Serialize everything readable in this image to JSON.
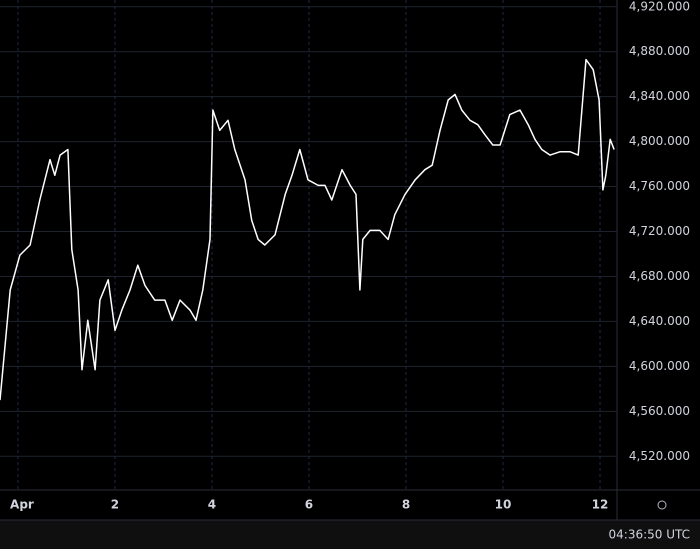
{
  "chart_data": {
    "type": "line",
    "x": [
      -0.37,
      -0.16,
      0.04,
      0.25,
      0.45,
      0.66,
      0.76,
      0.87,
      1.03,
      1.11,
      1.24,
      1.32,
      1.44,
      1.59,
      1.69,
      1.86,
      2.0,
      2.14,
      2.31,
      2.47,
      2.62,
      2.82,
      3.03,
      3.18,
      3.34,
      3.55,
      3.67,
      3.81,
      3.96,
      4.02,
      4.16,
      4.33,
      4.47,
      4.68,
      4.82,
      4.95,
      5.09,
      5.3,
      5.51,
      5.65,
      5.81,
      5.98,
      6.19,
      6.33,
      6.47,
      6.68,
      6.85,
      6.97,
      7.05,
      7.11,
      7.26,
      7.46,
      7.63,
      7.77,
      7.98,
      8.19,
      8.39,
      8.54,
      8.7,
      8.87,
      9.01,
      9.15,
      9.32,
      9.48,
      9.63,
      9.79,
      9.94,
      10.14,
      10.35,
      10.52,
      10.66,
      10.8,
      10.97,
      11.18,
      11.38,
      11.55,
      11.71,
      11.86,
      11.98,
      12.06,
      12.12,
      12.21,
      12.29
    ],
    "series": [
      {
        "color": "#ffffff",
        "values": [
          4570,
          4668,
          4699,
          4708,
          4748,
          4784,
          4770,
          4788,
          4793,
          4704,
          4668,
          4597,
          4641,
          4597,
          4659,
          4677,
          4632,
          4650,
          4668,
          4690,
          4672,
          4659,
          4659,
          4641,
          4659,
          4650,
          4641,
          4668,
          4713,
          4828,
          4810,
          4819,
          4793,
          4766,
          4730,
          4713,
          4708,
          4717,
          4753,
          4770,
          4793,
          4766,
          4761,
          4761,
          4748,
          4775,
          4761,
          4753,
          4668,
          4713,
          4721,
          4721,
          4713,
          4735,
          4753,
          4766,
          4775,
          4779,
          4810,
          4837,
          4842,
          4828,
          4819,
          4815,
          4806,
          4797,
          4797,
          4824,
          4828,
          4815,
          4802,
          4793,
          4788,
          4791,
          4791,
          4788,
          4873,
          4864,
          4837,
          4757,
          4770,
          4802,
          4793
        ]
      }
    ],
    "xlim": [
      -0.37,
      12.35
    ],
    "xticks": [
      {
        "value": 0,
        "label": "Apr"
      },
      2,
      4,
      6,
      8,
      10,
      12
    ],
    "ylim": [
      4490,
      4926
    ],
    "yticks": [
      {
        "value": 4520,
        "label": "4,520.000"
      },
      {
        "value": 4560,
        "label": "4,560.000"
      },
      {
        "value": 4600,
        "label": "4,600.000"
      },
      {
        "value": 4640,
        "label": "4,640.000"
      },
      {
        "value": 4680,
        "label": "4,680.000"
      },
      {
        "value": 4720,
        "label": "4,720.000"
      },
      {
        "value": 4760,
        "label": "4,760.000"
      },
      {
        "value": 4800,
        "label": "4,800.000"
      },
      {
        "value": 4840,
        "label": "4,840.000"
      },
      {
        "value": 4880,
        "label": "4,880.000"
      },
      {
        "value": 4920,
        "label": "4,920.000"
      }
    ],
    "grid": true,
    "time_label": "04:36:50 UTC"
  }
}
